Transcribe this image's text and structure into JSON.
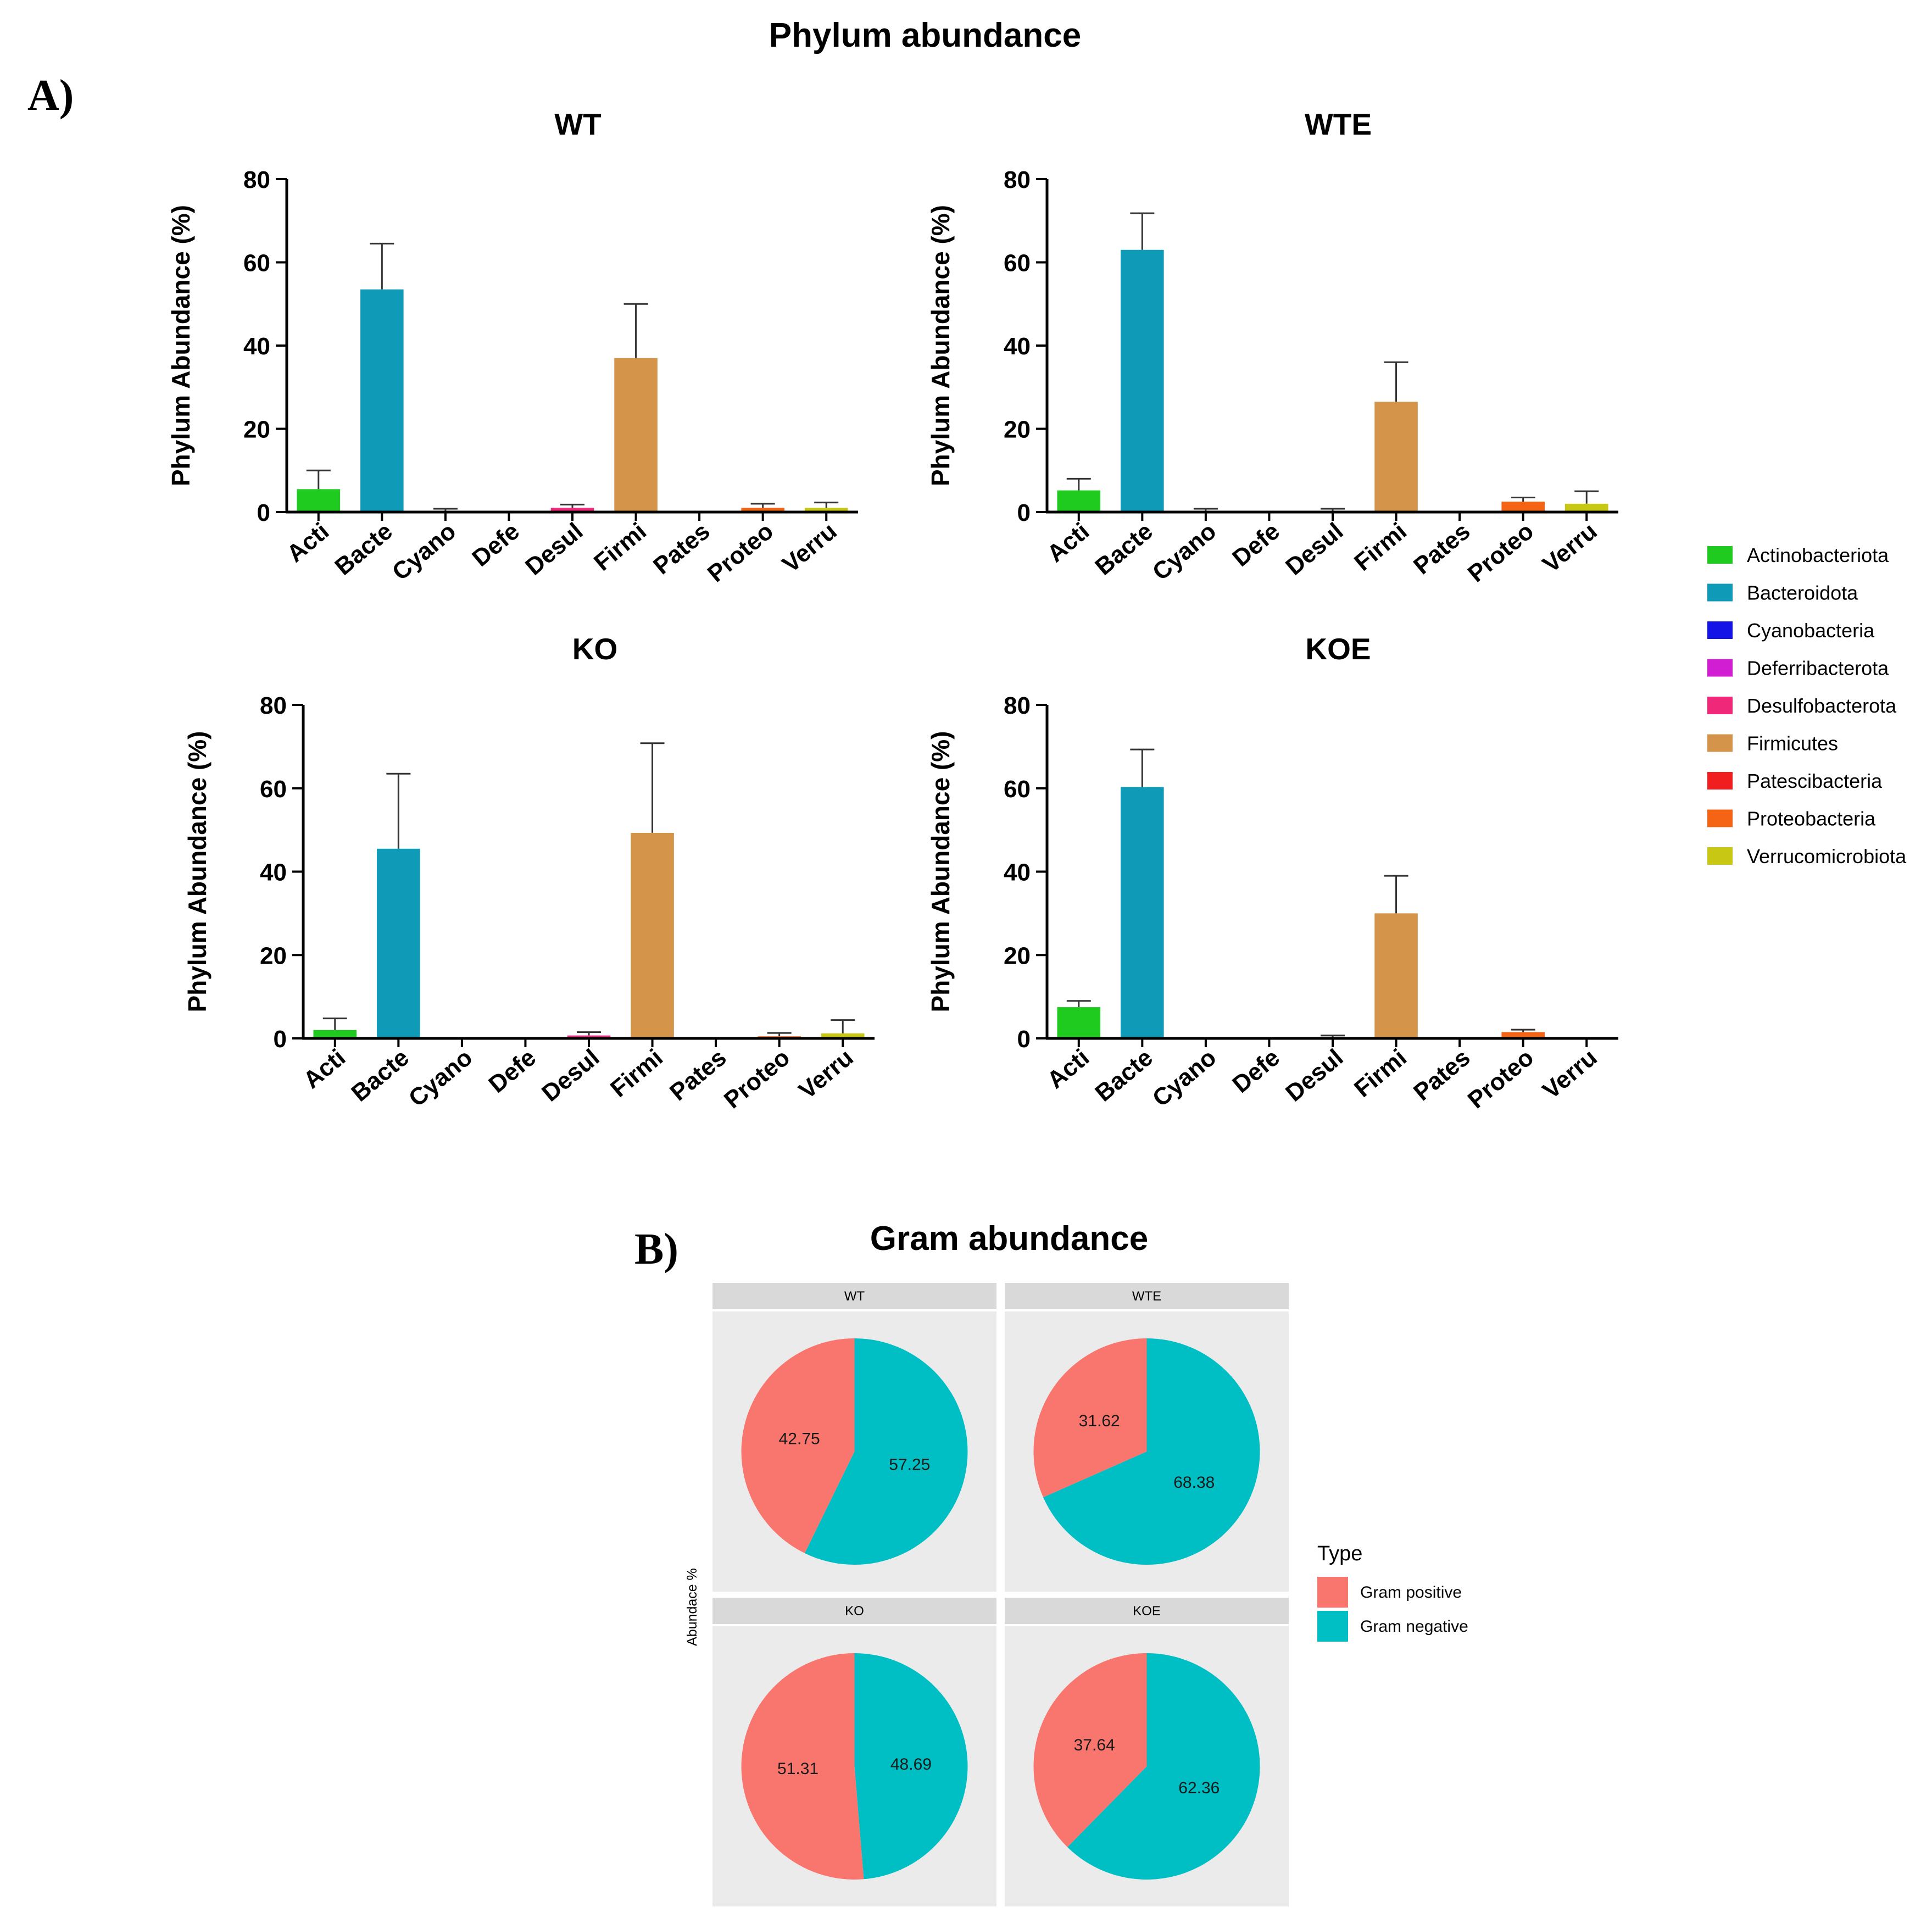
{
  "figure": {
    "title": "Phylum abundance",
    "panel_a_label": "A)",
    "panel_b_label": "B)"
  },
  "colors": {
    "Actinobacteriota": "#1ecb1e",
    "Bacteroidota": "#0f9ab8",
    "Cyanobacteria": "#1414e6",
    "Deferribacterota": "#d21ed2",
    "Desulfobacterota": "#f0287a",
    "Firmicutes": "#d4944a",
    "Patescibacteria": "#f01e1e",
    "Proteobacteria": "#f56414",
    "Verrucomicrobiota": "#c8c814",
    "gram_positive": "#f8766d",
    "gram_negative": "#00bfc4",
    "facet_strip": "#d9d9d9",
    "facet_panel": "#ebebeb"
  },
  "chart_data": [
    {
      "type": "bar",
      "title": "WT",
      "ylabel": "Phylum Abundance (%)",
      "ylim": [
        0,
        80
      ],
      "yticks": [
        "0",
        "20",
        "40",
        "60",
        "80"
      ],
      "categories": [
        "Acti",
        "Bacte",
        "Cyano",
        "Defe",
        "Desul",
        "Firmi",
        "Pates",
        "Proteo",
        "Verru"
      ],
      "values": [
        5.5,
        53.5,
        0.3,
        0,
        1.0,
        37.0,
        0,
        1.0,
        1.0
      ],
      "errors": [
        4.5,
        11.0,
        0.5,
        0,
        0.8,
        13.0,
        0,
        1.0,
        1.3
      ]
    },
    {
      "type": "bar",
      "title": "WTE",
      "ylabel": "Phylum Abundance (%)",
      "ylim": [
        0,
        80
      ],
      "yticks": [
        "0",
        "20",
        "40",
        "60",
        "80"
      ],
      "categories": [
        "Acti",
        "Bacte",
        "Cyano",
        "Defe",
        "Desul",
        "Firmi",
        "Pates",
        "Proteo",
        "Verru"
      ],
      "values": [
        5.2,
        63.0,
        0.3,
        0,
        0.3,
        26.5,
        0,
        2.5,
        2.0
      ],
      "errors": [
        2.8,
        8.8,
        0.5,
        0,
        0.5,
        9.5,
        0,
        1.0,
        3.0
      ]
    },
    {
      "type": "bar",
      "title": "KO",
      "ylabel": "Phylum Abundance (%)",
      "ylim": [
        0,
        80
      ],
      "yticks": [
        "0",
        "20",
        "40",
        "60",
        "80"
      ],
      "categories": [
        "Acti",
        "Bacte",
        "Cyano",
        "Defe",
        "Desul",
        "Firmi",
        "Pates",
        "Proteo",
        "Verru"
      ],
      "values": [
        2.0,
        45.5,
        0,
        0,
        0.7,
        49.3,
        0,
        0.5,
        1.2
      ],
      "errors": [
        2.8,
        18.0,
        0,
        0,
        0.8,
        21.5,
        0,
        0.8,
        3.2
      ]
    },
    {
      "type": "bar",
      "title": "KOE",
      "ylabel": "Phylum Abundance (%)",
      "ylim": [
        0,
        80
      ],
      "yticks": [
        "0",
        "20",
        "40",
        "60",
        "80"
      ],
      "categories": [
        "Acti",
        "Bacte",
        "Cyano",
        "Defe",
        "Desul",
        "Firmi",
        "Pates",
        "Proteo",
        "Verru"
      ],
      "values": [
        7.5,
        60.3,
        0,
        0,
        0.3,
        30.0,
        0,
        1.5,
        0
      ],
      "errors": [
        1.5,
        9.0,
        0,
        0,
        0.4,
        9.0,
        0,
        0.6,
        0
      ]
    },
    {
      "type": "pie",
      "title": "Gram abundance",
      "ylabel": "Abundace %",
      "legend_title": "Type",
      "legend": [
        "Gram positive",
        "Gram negative"
      ],
      "facets": [
        {
          "name": "WT",
          "labels": [
            "42.75",
            "57.25"
          ],
          "values": [
            42.75,
            57.25
          ]
        },
        {
          "name": "WTE",
          "labels": [
            "31.62",
            "68.38"
          ],
          "values": [
            31.62,
            68.38
          ]
        },
        {
          "name": "KO",
          "labels": [
            "51.31",
            "48.69"
          ],
          "values": [
            51.31,
            48.69
          ]
        },
        {
          "name": "KOE",
          "labels": [
            "37.64",
            "62.36"
          ],
          "values": [
            37.64,
            62.36
          ]
        }
      ]
    }
  ],
  "legend": {
    "items": [
      {
        "label": "Actinobacteriota",
        "color": "#1ecb1e"
      },
      {
        "label": "Bacteroidota",
        "color": "#0f9ab8"
      },
      {
        "label": "Cyanobacteria",
        "color": "#1414e6"
      },
      {
        "label": "Deferribacterota",
        "color": "#d21ed2"
      },
      {
        "label": "Desulfobacterota",
        "color": "#f0287a"
      },
      {
        "label": "Firmicutes",
        "color": "#d4944a"
      },
      {
        "label": "Patescibacteria",
        "color": "#f01e1e"
      },
      {
        "label": "Proteobacteria",
        "color": "#f56414"
      },
      {
        "label": "Verrucomicrobiota",
        "color": "#c8c814"
      }
    ]
  }
}
